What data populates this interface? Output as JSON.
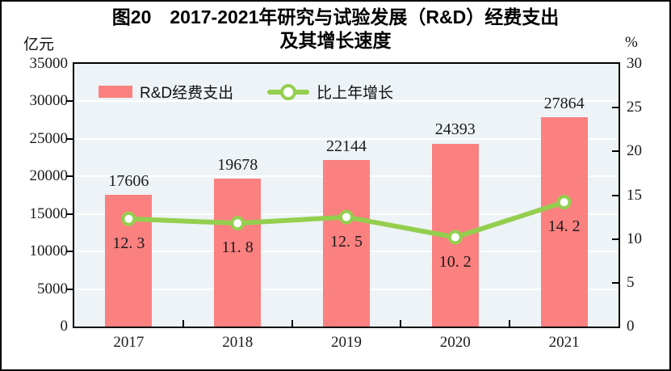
{
  "figure": {
    "title_line1": "图20　2017-2021年研究与试验发展（R&D）经费支出",
    "title_line2": "及其增长速度",
    "left_unit": "亿元",
    "right_unit": "%"
  },
  "legend": {
    "bar_label": "R&D经费支出",
    "line_label": "比上年增长"
  },
  "colors": {
    "bar": "#FB8080",
    "line": "#94CE4F",
    "marker_fill": "#FFFFFF",
    "plot_bg": "#EDF3F6",
    "grid": "#FFFFFF",
    "axis": "#000000",
    "text": "#1A1A1A"
  },
  "chart_data": {
    "type": "bar",
    "title": "图20　2017-2021年研究与试验发展（R&D）经费支出及其增长速度",
    "categories": [
      "2017",
      "2018",
      "2019",
      "2020",
      "2021"
    ],
    "series": [
      {
        "name": "R&D经费支出",
        "type": "bar",
        "axis": "left",
        "values": [
          17606,
          19678,
          22144,
          24393,
          27864
        ],
        "labels": [
          "17606",
          "19678",
          "22144",
          "24393",
          "27864"
        ]
      },
      {
        "name": "比上年增长",
        "type": "line",
        "axis": "right",
        "values": [
          12.3,
          11.8,
          12.5,
          10.2,
          14.2
        ],
        "labels": [
          "12. 3",
          "11. 8",
          "12. 5",
          "10. 2",
          "14. 2"
        ]
      }
    ],
    "left_axis": {
      "unit": "亿元",
      "min": 0,
      "max": 35000,
      "step": 5000,
      "ticks": [
        "0",
        "5000",
        "10000",
        "15000",
        "20000",
        "25000",
        "30000",
        "35000"
      ]
    },
    "right_axis": {
      "unit": "%",
      "min": 0,
      "max": 30,
      "step": 5,
      "ticks": [
        "0",
        "5",
        "10",
        "15",
        "20",
        "25",
        "30"
      ]
    },
    "grid": true,
    "legend_position": "top-left"
  }
}
